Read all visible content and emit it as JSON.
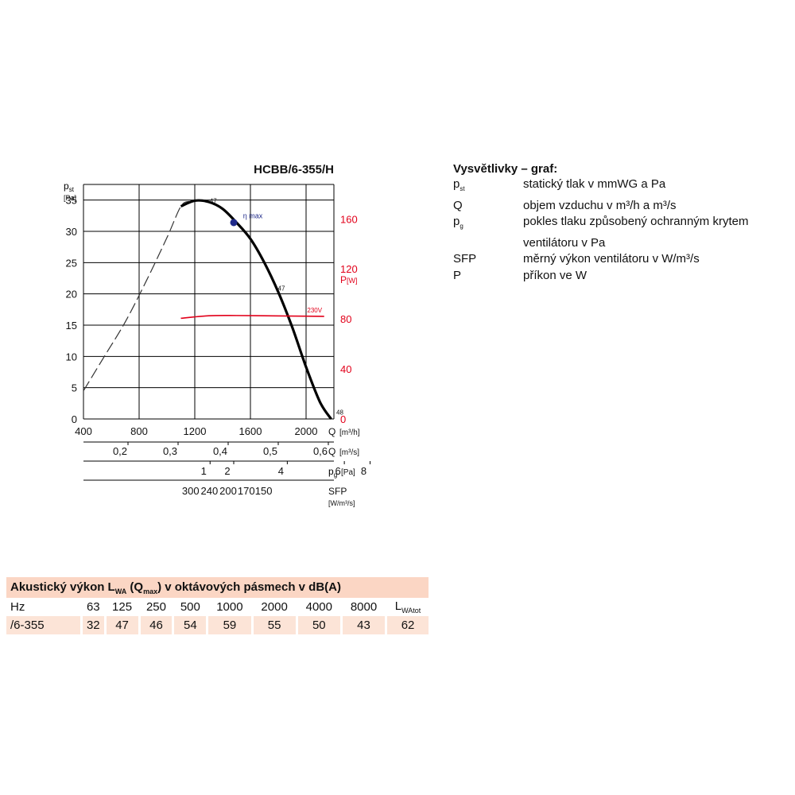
{
  "chart_data": {
    "type": "line",
    "title": "HCBB/6-355/H",
    "y_left": {
      "symbol": "p",
      "symbol_sub": "st",
      "unit": "[Pa]",
      "ticks": [
        0,
        5,
        10,
        15,
        20,
        25,
        30,
        35
      ],
      "range": [
        0,
        37.5
      ]
    },
    "y_right": {
      "label": "P",
      "unit": "[W]",
      "ticks": [
        0,
        40,
        80,
        120,
        160
      ],
      "range": [
        0,
        187.5
      ],
      "color": "#e2001a"
    },
    "x_axes": [
      {
        "id": "q_m3h",
        "label": "Q",
        "unit": "[m³/h]",
        "range": [
          400,
          2200
        ],
        "ticks": [
          {
            "v": 400,
            "t": "400"
          },
          {
            "v": 800,
            "t": "800"
          },
          {
            "v": 1200,
            "t": "1200"
          },
          {
            "v": 1600,
            "t": "1600"
          },
          {
            "v": 2000,
            "t": "2000"
          }
        ]
      },
      {
        "id": "q_m3s",
        "label": "Q",
        "unit": "[m³/s]",
        "ticks": [
          {
            "v": 0.2,
            "t": "0,2"
          },
          {
            "v": 0.3,
            "t": "0,3"
          },
          {
            "v": 0.4,
            "t": "0,4"
          },
          {
            "v": 0.5,
            "t": "0,5"
          },
          {
            "v": 0.6,
            "t": "0,6"
          }
        ]
      },
      {
        "id": "pg",
        "label": "p",
        "label_sub": "g",
        "unit": "[Pa]",
        "ticks": [
          {
            "q": 1310,
            "t": "1"
          },
          {
            "q": 1480,
            "t": "2"
          },
          {
            "q": 1865,
            "t": "4"
          },
          {
            "q": 2275,
            "t": "6"
          },
          {
            "q": 2460,
            "t": "8"
          }
        ]
      },
      {
        "id": "sfp",
        "label": "SFP",
        "unit": "[W/m³/s]",
        "ticks": [
          {
            "q": 1170,
            "t": "300"
          },
          {
            "q": 1305,
            "t": "240"
          },
          {
            "q": 1440,
            "t": "200"
          },
          {
            "q": 1570,
            "t": "170"
          },
          {
            "q": 1695,
            "t": "150"
          }
        ]
      }
    ],
    "series": [
      {
        "id": "pressure_dashed",
        "color": "#333333",
        "dashed": true,
        "axis": "left",
        "x": [
          400,
          550,
          700,
          850,
          1000,
          1100,
          1160
        ],
        "y": [
          4.5,
          10.0,
          15.5,
          22.0,
          29.0,
          34.0,
          34.8
        ]
      },
      {
        "id": "pressure",
        "color": "#000000",
        "dashed": false,
        "axis": "left",
        "x": [
          1100,
          1200,
          1300,
          1400,
          1500,
          1600,
          1700,
          1800,
          1900,
          2000,
          2100,
          2180
        ],
        "y": [
          34.0,
          34.9,
          34.7,
          33.6,
          31.4,
          28.8,
          25.0,
          20.3,
          14.7,
          8.3,
          2.7,
          0
        ]
      },
      {
        "id": "power_230V",
        "name": "230V",
        "color": "#e2001a",
        "dashed": false,
        "axis": "right",
        "x": [
          1100,
          1300,
          1500,
          1700,
          1900,
          2130
        ],
        "y": [
          80.5,
          82.5,
          82.7,
          82.5,
          82.3,
          82.0
        ]
      }
    ],
    "annotations": [
      {
        "text": "47",
        "q": 1290,
        "p": 34.9
      },
      {
        "text": "47",
        "q": 1780,
        "p": 20.9
      },
      {
        "text": "48",
        "q": 2200,
        "p": 1.1
      },
      {
        "text": "η max",
        "q": 1530,
        "p": 32.5
      }
    ],
    "marker": {
      "q": 1480,
      "p": 31.4,
      "color": "#1f2a8a"
    },
    "grid": true
  },
  "legend": {
    "title": "Vysvětlivky – graf:",
    "items": [
      {
        "sym": "p",
        "sub": "st",
        "desc": "statický tlak v mmWG a Pa"
      },
      {
        "sym": "Q",
        "sub": "",
        "desc": "objem vzduchu v m³/h a m³/s"
      },
      {
        "sym": "p",
        "sub": "g",
        "desc": "pokles tlaku způsobený ochranným krytem"
      },
      {
        "sym": "",
        "sub": "",
        "desc": "ventilátoru v Pa"
      },
      {
        "sym": "SFP",
        "sub": "",
        "desc": "měrný výkon ventilátoru v W/m³/s"
      },
      {
        "sym": "P",
        "sub": "",
        "desc": "příkon ve W"
      }
    ]
  },
  "acoustic": {
    "title_pre": "Akustický výkon L",
    "title_sub1": "WA",
    "title_mid": " (Q",
    "title_sub2": "max",
    "title_post": ") v oktávových pásmech v dB(A)",
    "header_label": "Hz",
    "bands": [
      "63",
      "125",
      "250",
      "500",
      "1000",
      "2000",
      "4000",
      "8000"
    ],
    "total_label": "L",
    "total_sub": "WAtot",
    "row_label": "/6-355",
    "values": [
      "32",
      "47",
      "46",
      "54",
      "59",
      "55",
      "50",
      "43"
    ],
    "total_value": "62"
  }
}
